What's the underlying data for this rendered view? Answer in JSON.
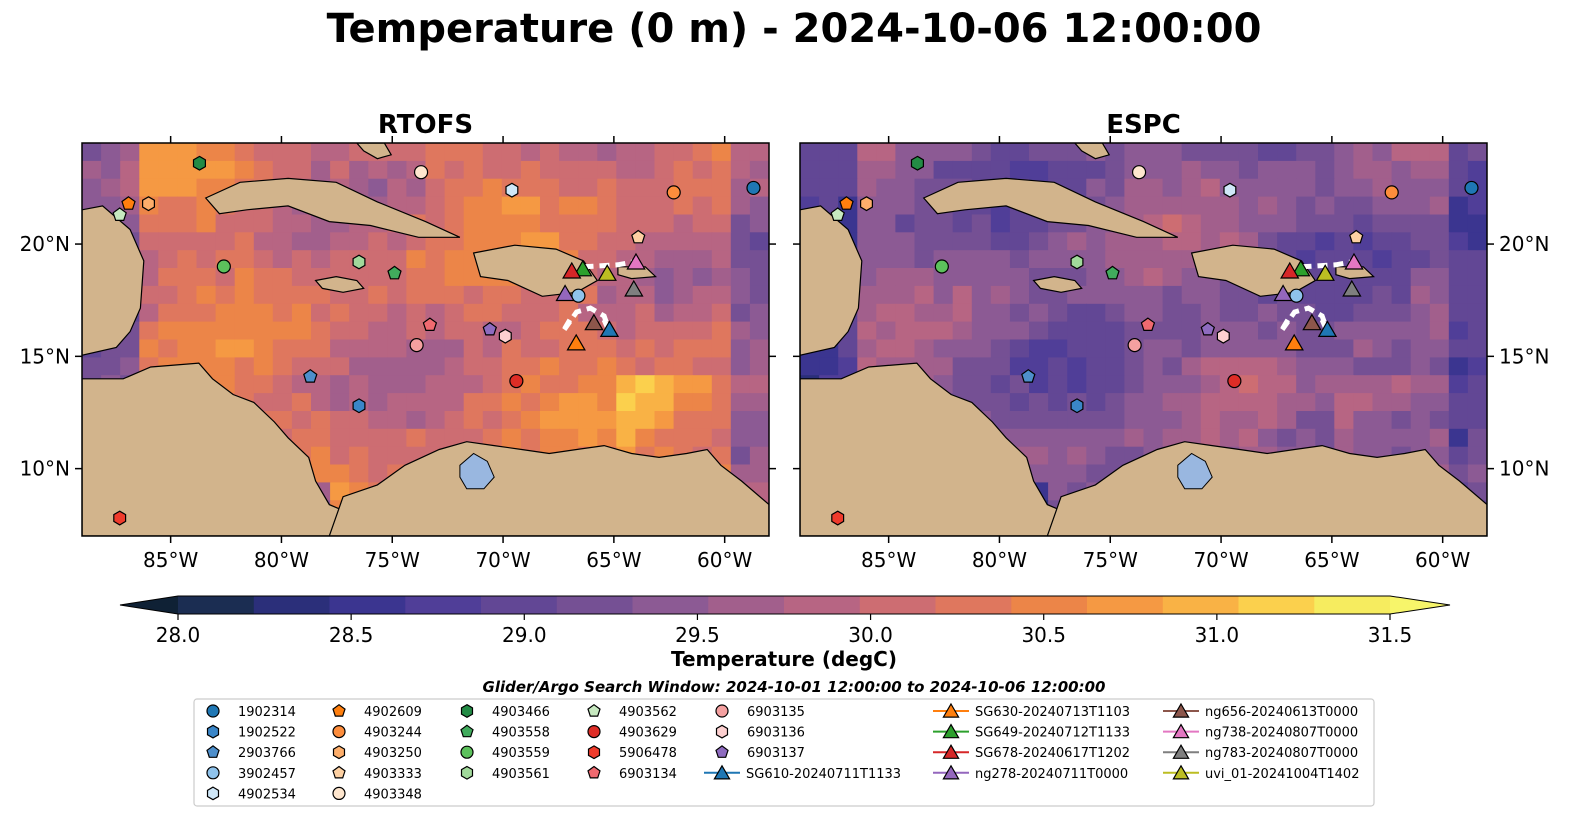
{
  "title": "Temperature (0 m) - 2024-10-06 12:00:00",
  "chart_data": {
    "type": "heatmap",
    "panels": [
      {
        "name": "RTOFS",
        "warmth": 0.62
      },
      {
        "name": "ESPC",
        "warmth": 0.38
      }
    ],
    "lon_range": [
      -89,
      -58
    ],
    "lat_range": [
      7,
      24.5
    ],
    "x_ticks": [
      {
        "value": -85,
        "label": "85°W"
      },
      {
        "value": -80,
        "label": "80°W"
      },
      {
        "value": -75,
        "label": "75°W"
      },
      {
        "value": -70,
        "label": "70°W"
      },
      {
        "value": -65,
        "label": "65°W"
      },
      {
        "value": -60,
        "label": "60°W"
      }
    ],
    "y_ticks": [
      {
        "value": 20,
        "label": "20°N"
      },
      {
        "value": 15,
        "label": "15°N"
      },
      {
        "value": 10,
        "label": "10°N"
      }
    ],
    "colorbar": {
      "label": "Temperature (degC)",
      "min": 28.0,
      "max": 31.5,
      "step": 0.25,
      "ticks": [
        "28.0",
        "28.5",
        "29.0",
        "29.5",
        "30.0",
        "30.5",
        "31.0",
        "31.5"
      ],
      "colors": [
        "#1b2d52",
        "#2b2f7a",
        "#3b3590",
        "#503e98",
        "#624795",
        "#755094",
        "#8c5a94",
        "#a25f8c",
        "#b76583",
        "#cd6d72",
        "#df775e",
        "#ec8548",
        "#f59943",
        "#f9b245",
        "#fbd04d",
        "#f6ec5f"
      ],
      "extend_low": "#0f2135",
      "extend_high": "#f7f56a"
    },
    "land_color": "#d2b48c",
    "lake_color": "#99b7e0",
    "markers": [
      {
        "id": "1902314",
        "shape": "circle",
        "color": "#1f77b4",
        "lon": -58.7,
        "lat": 22.5
      },
      {
        "id": "1902522",
        "shape": "hexagon",
        "color": "#3a86c8",
        "lon": -76.5,
        "lat": 12.8
      },
      {
        "id": "2903766",
        "shape": "pentagon",
        "color": "#4e8fcb",
        "lon": -78.7,
        "lat": 14.1
      },
      {
        "id": "3902457",
        "shape": "circle",
        "color": "#8fc3ec",
        "lon": -66.6,
        "lat": 17.7
      },
      {
        "id": "4902534",
        "shape": "hexagon",
        "color": "#cfe7f8",
        "lon": -69.6,
        "lat": 22.4
      },
      {
        "id": "4902609",
        "shape": "pentagon",
        "color": "#ff7f0e",
        "lon": -86.9,
        "lat": 21.8
      },
      {
        "id": "4903244",
        "shape": "circle",
        "color": "#fd8d3c",
        "lon": -62.3,
        "lat": 22.3
      },
      {
        "id": "4903250",
        "shape": "hexagon",
        "color": "#fdae6b",
        "lon": -86.0,
        "lat": 21.8
      },
      {
        "id": "4903333",
        "shape": "pentagon",
        "color": "#fdd0a2",
        "lon": -63.9,
        "lat": 20.3
      },
      {
        "id": "4903348",
        "shape": "circle",
        "color": "#fee6ce",
        "lon": -73.7,
        "lat": 23.2
      },
      {
        "id": "4903466",
        "shape": "hexagon",
        "color": "#238b45",
        "lon": -83.7,
        "lat": 23.6
      },
      {
        "id": "4903558",
        "shape": "pentagon",
        "color": "#41ab5d",
        "lon": -74.9,
        "lat": 18.7
      },
      {
        "id": "4903559",
        "shape": "circle",
        "color": "#5cc15c",
        "lon": -82.6,
        "lat": 19.0
      },
      {
        "id": "4903561",
        "shape": "hexagon",
        "color": "#a1d99b",
        "lon": -76.5,
        "lat": 19.2
      },
      {
        "id": "4903562",
        "shape": "pentagon",
        "color": "#c7e9c0",
        "lon": -87.3,
        "lat": 21.3
      },
      {
        "id": "4903629",
        "shape": "circle",
        "color": "#de2d26",
        "lon": -69.4,
        "lat": 13.9
      },
      {
        "id": "5906478",
        "shape": "hexagon",
        "color": "#ef3b2c",
        "lon": -87.3,
        "lat": 7.8
      },
      {
        "id": "6903134",
        "shape": "pentagon",
        "color": "#f06a70",
        "lon": -73.3,
        "lat": 16.4
      },
      {
        "id": "6903135",
        "shape": "circle",
        "color": "#f4a0a0",
        "lon": -73.9,
        "lat": 15.5
      },
      {
        "id": "6903136",
        "shape": "hexagon",
        "color": "#fdd0d0",
        "lon": -69.9,
        "lat": 15.9
      },
      {
        "id": "6903137",
        "shape": "pentagon",
        "color": "#8e6bbf",
        "lon": -70.6,
        "lat": 16.2
      }
    ],
    "gliders": [
      {
        "id": "SG610-20240711T1133",
        "color": "#1f77b4",
        "lon": -65.2,
        "lat": 16.2
      },
      {
        "id": "SG630-20240713T1103",
        "color": "#ff7f0e",
        "lon": -66.7,
        "lat": 15.6
      },
      {
        "id": "SG649-20240712T1133",
        "color": "#2ca02c",
        "lon": -66.4,
        "lat": 18.9
      },
      {
        "id": "SG678-20240617T1202",
        "color": "#d62728",
        "lon": -66.9,
        "lat": 18.8
      },
      {
        "id": "ng278-20240711T0000",
        "color": "#9467bd",
        "lon": -67.2,
        "lat": 17.8
      },
      {
        "id": "ng656-20240613T0000",
        "color": "#8c564b",
        "lon": -65.9,
        "lat": 16.5
      },
      {
        "id": "ng738-20240807T0000",
        "color": "#e377c2",
        "lon": -64.0,
        "lat": 19.2
      },
      {
        "id": "ng783-20240807T0000",
        "color": "#7f7f7f",
        "lon": -64.1,
        "lat": 18.0
      },
      {
        "id": "uvi_01-20241004T1402",
        "color": "#bcbd22",
        "lon": -65.3,
        "lat": 18.7
      }
    ],
    "legend_title": "Glider/Argo Search Window: 2024-10-01 12:00:00 to 2024-10-06 12:00:00",
    "legend_columns": [
      [
        "1902314",
        "1902522",
        "2903766",
        "3902457",
        "4902534"
      ],
      [
        "4902609",
        "4903244",
        "4903250",
        "4903333",
        "4903348"
      ],
      [
        "4903466",
        "4903558",
        "4903559",
        "4903561"
      ],
      [
        "4903562",
        "4903629",
        "5906478",
        "6903134"
      ],
      [
        "6903135",
        "6903136",
        "6903137",
        "SG610-20240711T1133"
      ],
      [
        "SG630-20240713T1103",
        "SG649-20240712T1133",
        "SG678-20240617T1202",
        "ng278-20240711T0000"
      ],
      [
        "ng656-20240613T0000",
        "ng738-20240807T0000",
        "ng783-20240807T0000",
        "uvi_01-20241004T1402"
      ]
    ]
  }
}
